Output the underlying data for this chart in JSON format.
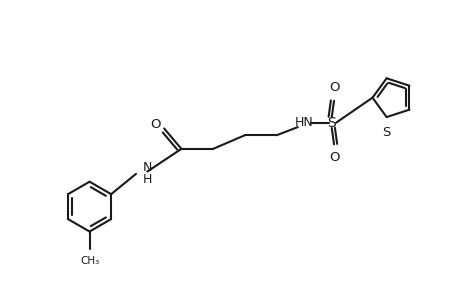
{
  "background_color": "#ffffff",
  "line_color": "#1a1a1a",
  "line_width": 1.5,
  "figsize": [
    4.6,
    3.0
  ],
  "dpi": 100,
  "xlim": [
    0,
    10
  ],
  "ylim": [
    0,
    6.5
  ]
}
